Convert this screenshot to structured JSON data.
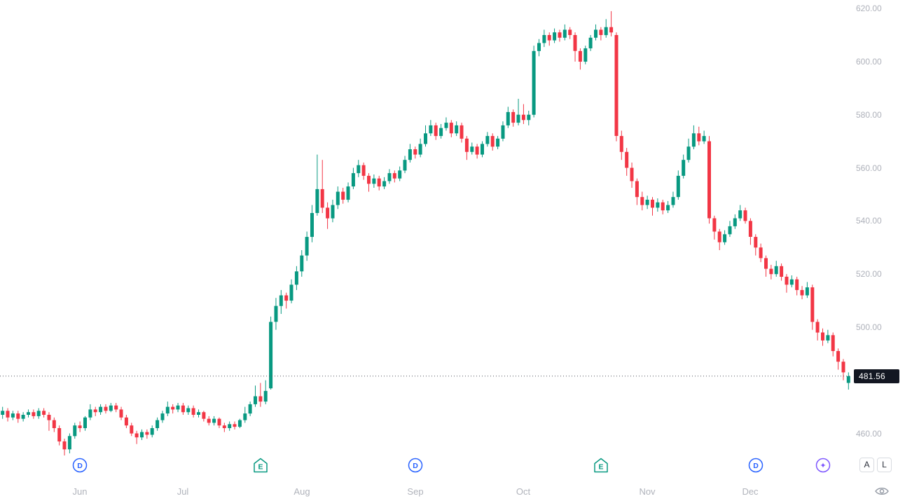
{
  "chart_data": {
    "type": "candlestick",
    "title": "",
    "timeframe_hint": "daily",
    "last_price": 481.56,
    "last_price_label": "481.56",
    "ylim": [
      451.7,
      623.2
    ],
    "grid": "off",
    "y_axis_ticks": [
      {
        "value": 620,
        "label": "620.00"
      },
      {
        "value": 600,
        "label": "600.00"
      },
      {
        "value": 580,
        "label": "580.00"
      },
      {
        "value": 560,
        "label": "560.00"
      },
      {
        "value": 540,
        "label": "540.00"
      },
      {
        "value": 520,
        "label": "520.00"
      },
      {
        "value": 500,
        "label": "500.00"
      },
      {
        "value": 460,
        "label": "460.00"
      }
    ],
    "x_axis_month_ticks": [
      {
        "label": "Jun",
        "index": 15
      },
      {
        "label": "Jul",
        "index": 35
      },
      {
        "label": "Aug",
        "index": 58
      },
      {
        "label": "Sep",
        "index": 80
      },
      {
        "label": "Oct",
        "index": 101
      },
      {
        "label": "Nov",
        "index": 125
      },
      {
        "label": "Dec",
        "index": 145
      }
    ],
    "markers": [
      {
        "kind": "dividend",
        "label": "D",
        "index": 15
      },
      {
        "kind": "earnings",
        "label": "E",
        "index": 50
      },
      {
        "kind": "dividend",
        "label": "D",
        "index": 80
      },
      {
        "kind": "earnings",
        "label": "E",
        "index": 116
      },
      {
        "kind": "dividend",
        "label": "D",
        "index": 146
      },
      {
        "kind": "ai-sparkle",
        "label": "✦",
        "index": 159
      }
    ],
    "candles": [
      [
        467,
        470,
        465.5,
        468.5
      ],
      [
        468.5,
        469.5,
        464.5,
        466
      ],
      [
        466,
        468.5,
        465,
        467.5
      ],
      [
        467.5,
        468.5,
        464,
        465.5
      ],
      [
        465.5,
        468,
        464.5,
        467
      ],
      [
        467,
        469,
        466,
        468
      ],
      [
        468,
        469,
        465.5,
        466.5
      ],
      [
        466.5,
        469.5,
        465.5,
        468.5
      ],
      [
        468.5,
        469.5,
        466,
        467
      ],
      [
        467,
        468,
        461,
        465
      ],
      [
        465,
        466,
        460.5,
        462
      ],
      [
        462,
        463,
        455.5,
        457
      ],
      [
        457,
        458,
        451,
        454
      ],
      [
        454,
        460,
        452.5,
        459
      ],
      [
        459,
        464,
        458,
        463
      ],
      [
        463,
        464.5,
        460.5,
        462
      ],
      [
        462,
        466.5,
        461,
        466
      ],
      [
        466,
        471,
        465,
        469
      ],
      [
        469,
        470,
        466.5,
        468
      ],
      [
        468,
        471,
        467,
        470
      ],
      [
        470,
        471,
        467.5,
        468.5
      ],
      [
        468.5,
        471.5,
        468,
        470.5
      ],
      [
        470.5,
        471.5,
        468,
        469
      ],
      [
        469,
        470,
        465,
        466
      ],
      [
        466,
        467,
        462,
        463
      ],
      [
        463,
        464,
        459,
        460
      ],
      [
        460,
        461,
        456,
        458.5
      ],
      [
        458.5,
        461.5,
        457.5,
        460.5
      ],
      [
        460.5,
        461.5,
        458,
        459.5
      ],
      [
        459.5,
        463,
        458.5,
        462
      ],
      [
        462,
        466,
        461,
        465
      ],
      [
        465,
        468.5,
        464,
        467.5
      ],
      [
        467.5,
        472,
        466.5,
        470
      ],
      [
        470,
        471,
        467.5,
        469
      ],
      [
        469,
        471.5,
        468,
        470.5
      ],
      [
        470.5,
        471.5,
        467,
        468
      ],
      [
        468,
        470.5,
        467,
        469.5
      ],
      [
        469.5,
        470.5,
        466,
        467
      ],
      [
        467,
        469,
        466,
        468
      ],
      [
        468,
        468.5,
        464.5,
        465.5
      ],
      [
        465.5,
        466.5,
        463,
        464
      ],
      [
        464,
        466.5,
        463,
        465.5
      ],
      [
        465.5,
        466,
        462,
        463
      ],
      [
        463,
        464,
        460.5,
        462
      ],
      [
        462,
        464.5,
        461,
        463.5
      ],
      [
        463.5,
        464.5,
        461.5,
        462.5
      ],
      [
        462.5,
        465.5,
        462,
        465
      ],
      [
        465,
        470,
        464,
        467.5
      ],
      [
        467.5,
        472,
        466.5,
        471
      ],
      [
        471,
        478,
        470,
        474
      ],
      [
        474,
        479,
        470,
        472
      ],
      [
        472,
        480,
        471,
        476
      ],
      [
        477,
        504,
        476.5,
        502
      ],
      [
        502,
        511,
        499,
        508
      ],
      [
        508,
        514,
        505,
        512
      ],
      [
        512,
        513,
        507,
        510
      ],
      [
        510,
        518,
        509,
        516
      ],
      [
        516,
        523,
        514,
        521
      ],
      [
        521,
        529,
        519,
        527
      ],
      [
        527,
        536,
        525,
        534
      ],
      [
        534,
        546,
        532,
        543
      ],
      [
        543,
        565,
        542,
        552
      ],
      [
        552,
        563,
        543,
        545
      ],
      [
        545,
        547,
        537,
        541
      ],
      [
        541,
        548,
        539.5,
        546
      ],
      [
        546,
        553,
        544.5,
        551
      ],
      [
        551,
        552.5,
        546.5,
        548
      ],
      [
        548,
        554.5,
        547,
        553
      ],
      [
        553,
        560,
        552,
        558
      ],
      [
        558,
        563,
        556.5,
        561
      ],
      [
        561,
        562,
        555.5,
        557
      ],
      [
        557,
        558,
        551,
        554
      ],
      [
        554,
        557.5,
        552.5,
        556
      ],
      [
        556,
        557,
        551.5,
        553
      ],
      [
        553,
        556.5,
        552,
        555
      ],
      [
        555,
        559.5,
        554,
        558
      ],
      [
        558,
        559,
        554.5,
        556
      ],
      [
        556,
        560.5,
        555,
        559
      ],
      [
        559,
        564.5,
        558,
        563
      ],
      [
        563,
        569,
        562,
        567
      ],
      [
        567,
        568,
        563.5,
        565
      ],
      [
        565,
        571,
        564,
        569
      ],
      [
        569,
        576,
        568,
        573
      ],
      [
        573,
        578,
        572,
        576
      ],
      [
        576,
        577,
        570.5,
        572
      ],
      [
        572,
        576.5,
        571,
        575
      ],
      [
        575,
        579,
        574,
        577
      ],
      [
        577,
        578,
        571.5,
        573
      ],
      [
        573,
        577.5,
        572,
        576
      ],
      [
        576,
        577,
        569.5,
        571
      ],
      [
        571,
        572,
        563,
        566
      ],
      [
        566,
        569.5,
        565,
        568
      ],
      [
        568,
        569,
        563.5,
        565
      ],
      [
        565,
        570,
        564,
        569
      ],
      [
        569,
        573.5,
        568,
        572
      ],
      [
        572,
        573,
        566.5,
        568
      ],
      [
        568,
        572,
        567,
        571
      ],
      [
        571,
        577.5,
        570,
        576
      ],
      [
        576,
        583,
        575,
        581
      ],
      [
        581,
        582,
        575.5,
        577
      ],
      [
        577,
        586,
        576,
        580
      ],
      [
        580,
        584,
        576.5,
        578
      ],
      [
        578,
        581.5,
        576,
        580
      ],
      [
        580,
        606,
        579,
        604
      ],
      [
        604,
        608.5,
        602,
        607
      ],
      [
        607,
        612,
        605.5,
        610
      ],
      [
        610,
        611,
        606,
        608
      ],
      [
        608,
        612.5,
        607,
        611
      ],
      [
        611,
        612,
        607.5,
        609
      ],
      [
        609,
        614,
        608,
        612
      ],
      [
        612,
        613,
        608.5,
        610
      ],
      [
        610,
        611,
        600,
        604
      ],
      [
        604,
        605,
        597,
        600
      ],
      [
        600,
        606,
        599,
        605
      ],
      [
        605,
        610,
        604,
        609
      ],
      [
        609,
        614,
        608,
        612
      ],
      [
        612,
        613,
        608,
        610
      ],
      [
        610,
        616,
        609,
        613
      ],
      [
        613,
        619,
        609.5,
        611
      ],
      [
        610,
        611,
        570,
        572
      ],
      [
        572,
        574,
        563,
        566
      ],
      [
        566,
        567.5,
        557,
        560
      ],
      [
        560,
        562,
        552.5,
        555
      ],
      [
        555,
        556,
        546,
        549
      ],
      [
        549,
        551,
        544,
        546
      ],
      [
        546,
        549.5,
        544.5,
        548
      ],
      [
        548,
        549,
        542,
        545
      ],
      [
        545,
        548.5,
        543.5,
        547
      ],
      [
        547,
        548,
        542.5,
        544
      ],
      [
        544,
        547.5,
        543,
        546
      ],
      [
        546,
        551,
        545,
        549
      ],
      [
        549,
        559,
        548,
        557
      ],
      [
        557,
        565,
        556,
        563
      ],
      [
        563,
        571,
        562,
        568
      ],
      [
        568,
        576,
        567,
        573
      ],
      [
        573,
        575.5,
        568.5,
        570
      ],
      [
        570,
        574,
        569,
        572
      ],
      [
        570,
        572,
        539,
        541
      ],
      [
        541,
        542,
        533,
        536
      ],
      [
        536,
        537,
        529,
        532
      ],
      [
        532,
        536.5,
        531,
        535
      ],
      [
        535,
        540,
        534,
        538
      ],
      [
        538,
        542.5,
        537,
        541
      ],
      [
        541,
        546,
        540,
        544
      ],
      [
        544,
        545,
        539,
        540
      ],
      [
        540,
        541,
        531,
        534
      ],
      [
        534,
        535,
        527,
        530
      ],
      [
        530,
        531.5,
        524.5,
        526
      ],
      [
        526,
        527,
        519,
        522
      ],
      [
        522,
        523.5,
        518,
        520
      ],
      [
        520,
        525,
        519,
        523
      ],
      [
        523,
        524,
        517.5,
        519
      ],
      [
        519,
        520,
        513,
        516
      ],
      [
        516,
        519.5,
        515,
        518
      ],
      [
        518,
        519,
        512,
        514
      ],
      [
        514,
        515.5,
        510.5,
        512
      ],
      [
        512,
        517,
        511,
        515
      ],
      [
        515,
        516,
        499,
        502
      ],
      [
        502,
        503,
        495,
        498
      ],
      [
        498,
        499.5,
        493,
        495
      ],
      [
        495,
        499,
        494,
        497
      ],
      [
        497,
        498,
        489,
        491
      ],
      [
        491,
        492,
        484,
        487
      ],
      [
        487,
        488,
        480,
        483
      ],
      [
        479,
        483,
        476.5,
        481.56
      ]
    ],
    "colors": {
      "up": "#089981",
      "down": "#f23645",
      "dividend": "#2962ff",
      "earnings": "#089981",
      "ai": "#7e57ff",
      "axis_text": "#aeb1ba",
      "last_price_bg": "#131722",
      "last_price_text": "#ffffff",
      "dotted_line": "#50535e"
    }
  },
  "scale_buttons": {
    "auto_label": "A",
    "log_label": "L"
  },
  "footer_icons": {
    "eye_icon": "eye"
  }
}
